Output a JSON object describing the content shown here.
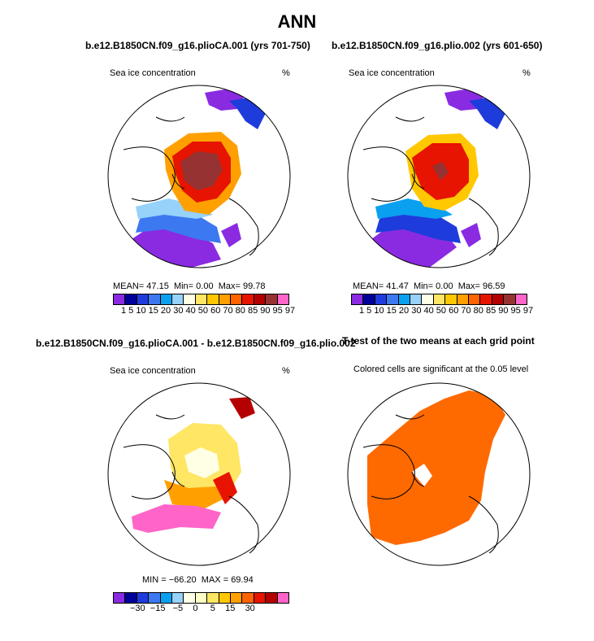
{
  "title": "ANN",
  "panels": {
    "p1": {
      "title": "b.e12.B1850CN.f09_g16.plioCA.001 (yrs 701-750)",
      "left_label": "Sea ice concentration",
      "right_label": "%",
      "stats": {
        "mean_label": "MEAN=",
        "mean": "47.15",
        "min_label": "Min=",
        "min": "0.00",
        "max_label": "Max=",
        "max": "99.78"
      }
    },
    "p2": {
      "title": "b.e12.B1850CN.f09_g16.plio.002 (yrs 601-650)",
      "left_label": "Sea ice concentration",
      "right_label": "%",
      "stats": {
        "mean_label": "MEAN=",
        "mean": "41.47",
        "min_label": "Min=",
        "min": "0.00",
        "max_label": "Max=",
        "max": "96.59"
      }
    },
    "p3": {
      "title": "b.e12.B1850CN.f09_g16.plioCA.001 - b.e12.B1850CN.f09_g16.plio.002",
      "left_label": "Sea ice concentration",
      "right_label": "%",
      "stats": {
        "min_label": "MIN =",
        "min": "−66.20",
        "max_label": "MAX =",
        "max": "69.94"
      }
    },
    "p4": {
      "title": "T-test of the two means at each grid point",
      "subtitle": "Colored cells are significant at the 0.05 level"
    }
  },
  "colorbars": {
    "abs": {
      "colors": [
        "#8a2be2",
        "#000099",
        "#1e3cdc",
        "#3c78f0",
        "#0aa0f0",
        "#96d2fa",
        "#ffffe6",
        "#ffe664",
        "#ffc800",
        "#ffa000",
        "#ff6400",
        "#e61400",
        "#b40000",
        "#963232",
        "#ff64c8"
      ],
      "tick_text": "1  5  10 15 20 30 40 50 60 70 80 85 90 95 97",
      "ticks": [
        "1",
        "5",
        "10",
        "15",
        "20",
        "30",
        "40",
        "50",
        "60",
        "70",
        "80",
        "85",
        "90",
        "95",
        "97"
      ]
    },
    "diff": {
      "colors": [
        "#8a2be2",
        "#000099",
        "#1e3cdc",
        "#3c78f0",
        "#0aa0f0",
        "#96d2fa",
        "#ffffe6",
        "#ffffc8",
        "#ffe664",
        "#ffc800",
        "#ffa000",
        "#ff6400",
        "#e61400",
        "#b40000",
        "#ff64c8"
      ],
      "tick_text": "−30  −15   −5    0     5    15    30",
      "ticks": [
        "−30",
        "−15",
        "−5",
        "0",
        "5",
        "15",
        "30"
      ]
    }
  },
  "map_colors": {
    "land_outline": "#000000",
    "ice_high": "#963232",
    "ice_mid": "#e61400",
    "ice_low": "#ffa000",
    "edge": "#1e3cdc",
    "purple": "#8a2be2",
    "pink": "#ff64c8",
    "sig": "#ff6a00"
  },
  "chart_data": [
    {
      "type": "heatmap",
      "title": "b.e12.B1850CN.f09_g16.plioCA.001 (yrs 701-750)",
      "variable": "Sea ice concentration",
      "units": "%",
      "levels": [
        1,
        5,
        10,
        15,
        20,
        30,
        40,
        50,
        60,
        70,
        80,
        85,
        90,
        95,
        97
      ],
      "stats": {
        "mean": 47.15,
        "min": 0.0,
        "max": 99.78
      }
    },
    {
      "type": "heatmap",
      "title": "b.e12.B1850CN.f09_g16.plio.002 (yrs 601-650)",
      "variable": "Sea ice concentration",
      "units": "%",
      "levels": [
        1,
        5,
        10,
        15,
        20,
        30,
        40,
        50,
        60,
        70,
        80,
        85,
        90,
        95,
        97
      ],
      "stats": {
        "mean": 41.47,
        "min": 0.0,
        "max": 96.59
      }
    },
    {
      "type": "heatmap",
      "title": "b.e12.B1850CN.f09_g16.plioCA.001 - b.e12.B1850CN.f09_g16.plio.002",
      "variable": "Sea ice concentration",
      "units": "%",
      "levels": [
        -30,
        -15,
        -5,
        0,
        5,
        15,
        30
      ],
      "stats": {
        "min": -66.2,
        "max": 69.94
      }
    },
    {
      "type": "heatmap",
      "title": "T-test of the two means at each grid point",
      "subtitle": "Colored cells are significant at the 0.05 level"
    }
  ]
}
